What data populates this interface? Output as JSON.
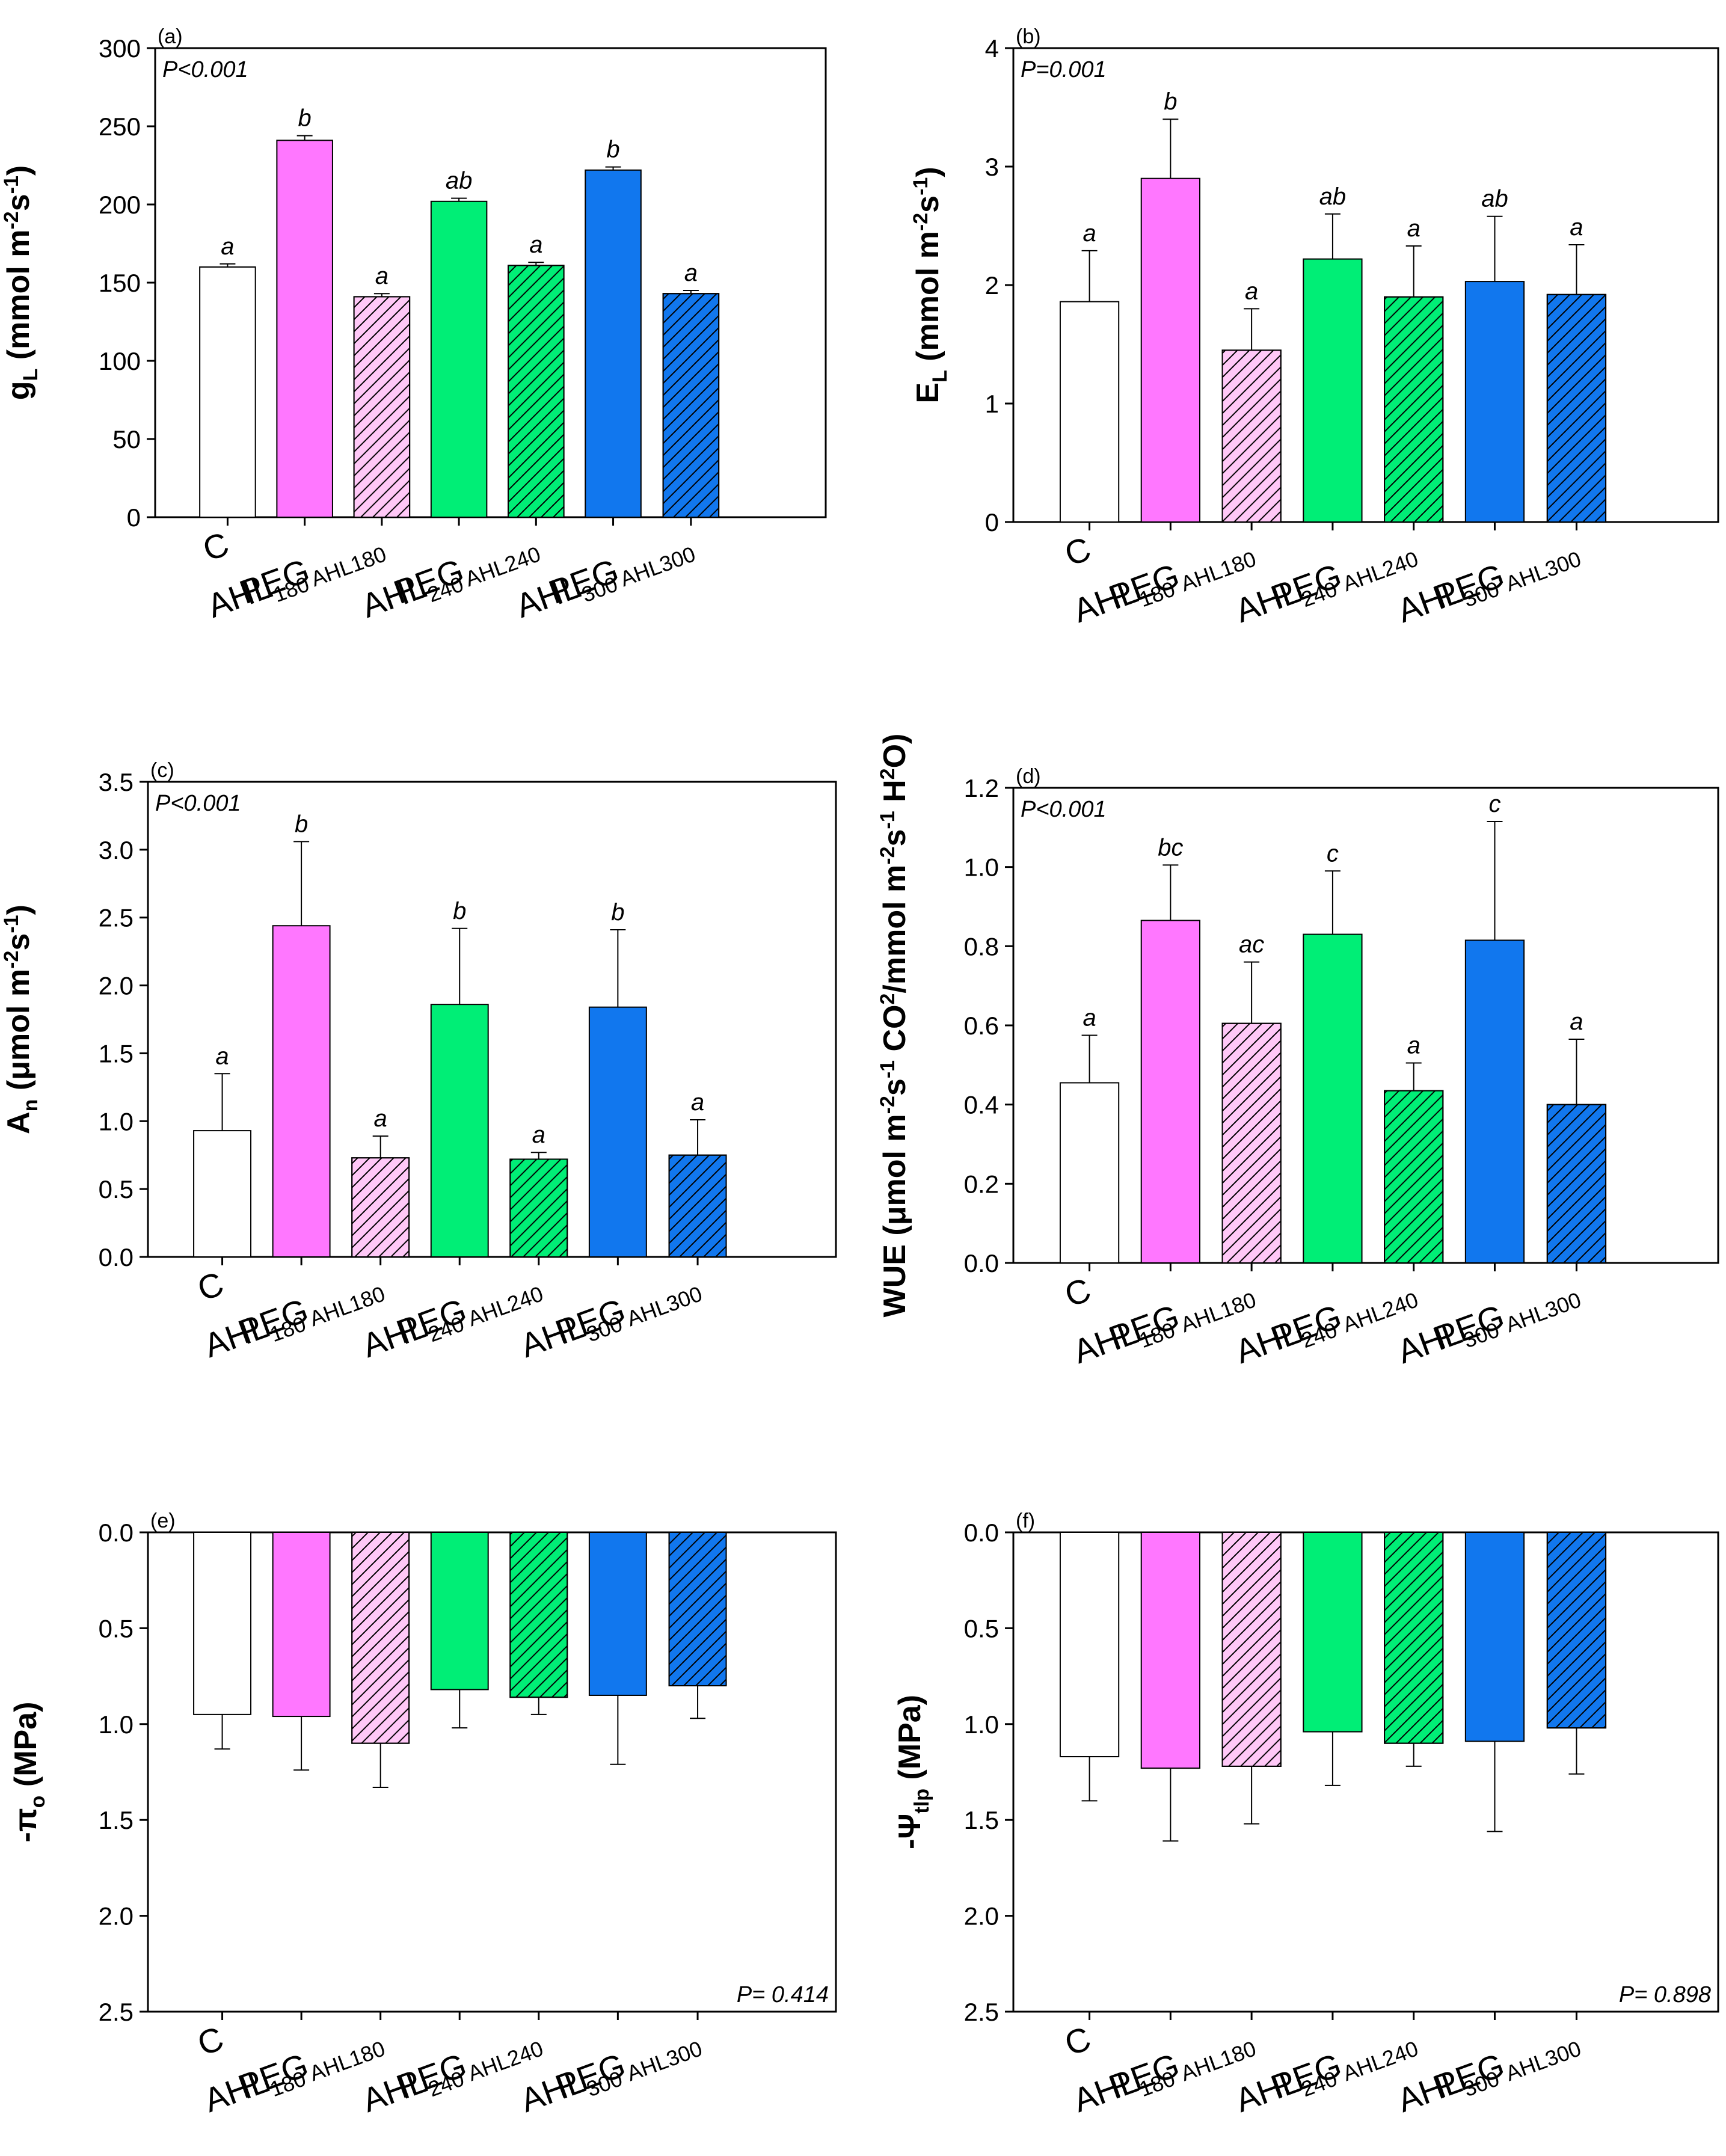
{
  "colors": {
    "C": "#ffffff",
    "AHL180": "#ff77ff",
    "PEGAHL180": "#ffc8f7",
    "AHL240": "#00ee76",
    "PEGAHL240": "#00ee76",
    "AHL300": "#1177ee",
    "PEGAHL300": "#1177ee"
  },
  "chart_data": [
    {
      "id": "a",
      "panel": "(a)",
      "type": "bar",
      "ylabel": "gL (mmol m-2s-1)",
      "ylabel_parts": [
        "g",
        "L",
        " (mmol m",
        "-2",
        "s",
        "-1",
        ")"
      ],
      "ylim": [
        0,
        300
      ],
      "yticks": [
        "0",
        "50",
        "100",
        "150",
        "200",
        "250",
        "300"
      ],
      "inverted": false,
      "categories": [
        [
          "C",
          ""
        ],
        [
          "AHL",
          "180"
        ],
        [
          "PEG",
          "AHL180"
        ],
        [
          "AHL",
          "240"
        ],
        [
          "PEG",
          "AHL240"
        ],
        [
          "AHL",
          "300"
        ],
        [
          "PEG",
          "AHL300"
        ]
      ],
      "values": [
        160,
        241,
        141,
        202,
        161,
        222,
        143
      ],
      "errors": [
        2,
        3,
        2,
        2,
        2,
        2,
        2
      ],
      "letters": [
        "a",
        "b",
        "a",
        "ab",
        "a",
        "b",
        "a"
      ],
      "pvalue": "P<0.001",
      "pvalue_pos": "top-left"
    },
    {
      "id": "b",
      "panel": "(b)",
      "type": "bar",
      "ylabel": "EL (mmol m-2s-1)",
      "ylabel_parts": [
        "E",
        "L",
        " (mmol m",
        "-2",
        "s",
        "-1",
        ")"
      ],
      "ylim": [
        0,
        4
      ],
      "yticks": [
        "0",
        "1",
        "2",
        "3",
        "4"
      ],
      "inverted": false,
      "categories": [
        [
          "C",
          ""
        ],
        [
          "AHL",
          "180"
        ],
        [
          "PEG",
          "AHL180"
        ],
        [
          "AHL",
          "240"
        ],
        [
          "PEG",
          "AHL240"
        ],
        [
          "AHL",
          "300"
        ],
        [
          "PEG",
          "AHL300"
        ]
      ],
      "values": [
        1.86,
        2.9,
        1.45,
        2.22,
        1.9,
        2.03,
        1.92
      ],
      "errors": [
        0.43,
        0.5,
        0.35,
        0.38,
        0.43,
        0.55,
        0.42
      ],
      "letters": [
        "a",
        "b",
        "a",
        "ab",
        "a",
        "ab",
        "a"
      ],
      "pvalue": "P=0.001",
      "pvalue_pos": "top-left"
    },
    {
      "id": "c",
      "panel": "(c)",
      "type": "bar",
      "ylabel": "An (μmol m-2s-1)",
      "ylabel_parts": [
        "A",
        "n",
        " (μmol m",
        "-2",
        "s",
        "-1",
        ")"
      ],
      "ylim": [
        0,
        3.5
      ],
      "yticks": [
        "0.0",
        "0.5",
        "1.0",
        "1.5",
        "2.0",
        "2.5",
        "3.0",
        "3.5"
      ],
      "inverted": false,
      "categories": [
        [
          "C",
          ""
        ],
        [
          "AHL",
          "180"
        ],
        [
          "PEG",
          "AHL180"
        ],
        [
          "AHL",
          "240"
        ],
        [
          "PEG",
          "AHL240"
        ],
        [
          "AHL",
          "300"
        ],
        [
          "PEG",
          "AHL300"
        ]
      ],
      "values": [
        0.93,
        2.44,
        0.73,
        1.86,
        0.72,
        1.84,
        0.75
      ],
      "errors": [
        0.42,
        0.62,
        0.16,
        0.56,
        0.05,
        0.57,
        0.26
      ],
      "letters": [
        "a",
        "b",
        "a",
        "b",
        "a",
        "b",
        "a"
      ],
      "pvalue": "P<0.001",
      "pvalue_pos": "top-left"
    },
    {
      "id": "d",
      "panel": "(d)",
      "type": "bar",
      "ylabel": "WUE (μmol m-2s-1 CO2/mmol m-2s-1 H2O)",
      "ylabel_parts": [
        "WUE (μmol m",
        "-2",
        "s",
        "-1",
        " CO",
        "2",
        "/mmol m",
        "-2",
        "s",
        "-1",
        " H",
        "2",
        "O)"
      ],
      "ylim": [
        0,
        1.2
      ],
      "yticks": [
        "0.0",
        "0.2",
        "0.4",
        "0.6",
        "0.8",
        "1.0",
        "1.2"
      ],
      "inverted": false,
      "categories": [
        [
          "C",
          ""
        ],
        [
          "AHL",
          "180"
        ],
        [
          "PEG",
          "AHL180"
        ],
        [
          "AHL",
          "240"
        ],
        [
          "PEG",
          "AHL240"
        ],
        [
          "AHL",
          "300"
        ],
        [
          "PEG",
          "AHL300"
        ]
      ],
      "values": [
        0.455,
        0.865,
        0.605,
        0.83,
        0.435,
        0.815,
        0.4
      ],
      "errors": [
        0.12,
        0.14,
        0.155,
        0.16,
        0.07,
        0.3,
        0.165
      ],
      "letters": [
        "a",
        "bc",
        "ac",
        "c",
        "a",
        "c",
        "a"
      ],
      "pvalue": "P<0.001",
      "pvalue_pos": "top-left"
    },
    {
      "id": "e",
      "panel": "(e)",
      "type": "bar",
      "ylabel": "-πo (MPa)",
      "ylabel_parts": [
        "-π",
        "o",
        " (MPa)"
      ],
      "ylim": [
        0,
        2.5
      ],
      "yticks": [
        "0.0",
        "0.5",
        "1.0",
        "1.5",
        "2.0",
        "2.5"
      ],
      "inverted": true,
      "categories": [
        [
          "C",
          ""
        ],
        [
          "AHL",
          "180"
        ],
        [
          "PEG",
          "AHL180"
        ],
        [
          "AHL",
          "240"
        ],
        [
          "PEG",
          "AHL240"
        ],
        [
          "AHL",
          "300"
        ],
        [
          "PEG",
          "AHL300"
        ]
      ],
      "values": [
        0.95,
        0.96,
        1.1,
        0.82,
        0.86,
        0.85,
        0.8
      ],
      "errors": [
        0.18,
        0.28,
        0.23,
        0.2,
        0.09,
        0.36,
        0.17
      ],
      "letters": [],
      "pvalue": "P= 0.414",
      "pvalue_pos": "bottom-right"
    },
    {
      "id": "f",
      "panel": "(f)",
      "type": "bar",
      "ylabel": "-Ψtlp (MPa)",
      "ylabel_parts": [
        "-Ψ",
        "tlp",
        " (MPa)"
      ],
      "ylim": [
        0,
        2.5
      ],
      "yticks": [
        "0.0",
        "0.5",
        "1.0",
        "1.5",
        "2.0",
        "2.5"
      ],
      "inverted": true,
      "categories": [
        [
          "C",
          ""
        ],
        [
          "AHL",
          "180"
        ],
        [
          "PEG",
          "AHL180"
        ],
        [
          "AHL",
          "240"
        ],
        [
          "PEG",
          "AHL240"
        ],
        [
          "AHL",
          "300"
        ],
        [
          "PEG",
          "AHL300"
        ]
      ],
      "values": [
        1.17,
        1.23,
        1.22,
        1.04,
        1.1,
        1.09,
        1.02
      ],
      "errors": [
        0.23,
        0.38,
        0.3,
        0.28,
        0.12,
        0.47,
        0.24
      ],
      "letters": [],
      "pvalue": "P= 0.898",
      "pvalue_pos": "bottom-right"
    }
  ]
}
